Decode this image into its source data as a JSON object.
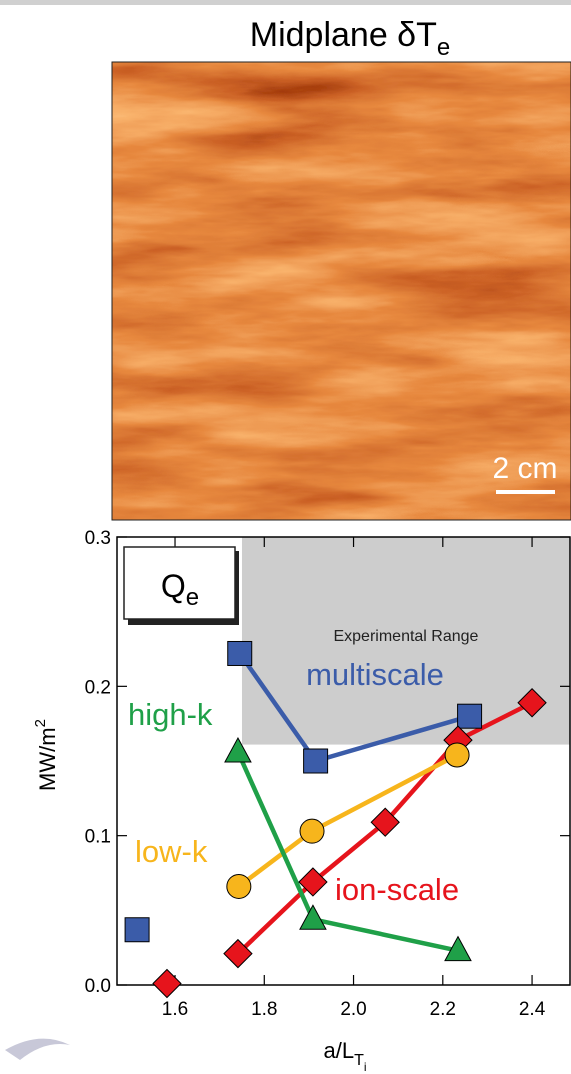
{
  "chart_data": {
    "type": "line",
    "title": {
      "text": "Midplane δT",
      "sub": "e"
    },
    "scale_bar": "2 cm",
    "annotation": {
      "text": "Q",
      "sub": "e"
    },
    "xlabel": {
      "text": "a/L",
      "sub": "T",
      "subsub": "i"
    },
    "ylabel": {
      "text": "MW/m",
      "sup": "2"
    },
    "xlim": [
      1.47,
      2.485
    ],
    "ylim": [
      0,
      0.3
    ],
    "xticks": [
      1.6,
      1.8,
      {
        "value": 2.0,
        "label": "2.0"
      },
      2.2,
      2.4
    ],
    "yticks": [
      {
        "value": 0,
        "label": "0.0"
      },
      0.1,
      0.2,
      0.3
    ],
    "shaded_region": {
      "label": "Experimental Range",
      "xlim": [
        1.75,
        2.485
      ],
      "ylim": [
        0.161,
        0.3
      ]
    },
    "series": [
      {
        "name": "multiscale",
        "color": "#3b5ca9",
        "marker": "square",
        "x": [
          1.515,
          null,
          1.745,
          1.915,
          2.26
        ],
        "values": [
          0.037,
          null,
          0.222,
          0.15,
          0.18
        ]
      },
      {
        "name": "ion-scale",
        "color": "#e6141c",
        "marker": "diamond",
        "x": [
          1.582,
          null,
          1.741,
          1.909,
          2.071,
          2.234,
          2.4
        ],
        "values": [
          0.001,
          null,
          0.021,
          0.069,
          0.109,
          0.164,
          0.189
        ]
      },
      {
        "name": "low-k",
        "color": "#f7b51c",
        "marker": "circle",
        "x": [
          1.743,
          1.907,
          2.232
        ],
        "values": [
          0.066,
          0.103,
          0.154
        ]
      },
      {
        "name": "high-k",
        "color": "#1fa048",
        "marker": "triangle",
        "x": [
          1.741,
          1.909,
          2.234
        ],
        "values": [
          0.156,
          0.044,
          0.023
        ]
      }
    ]
  }
}
